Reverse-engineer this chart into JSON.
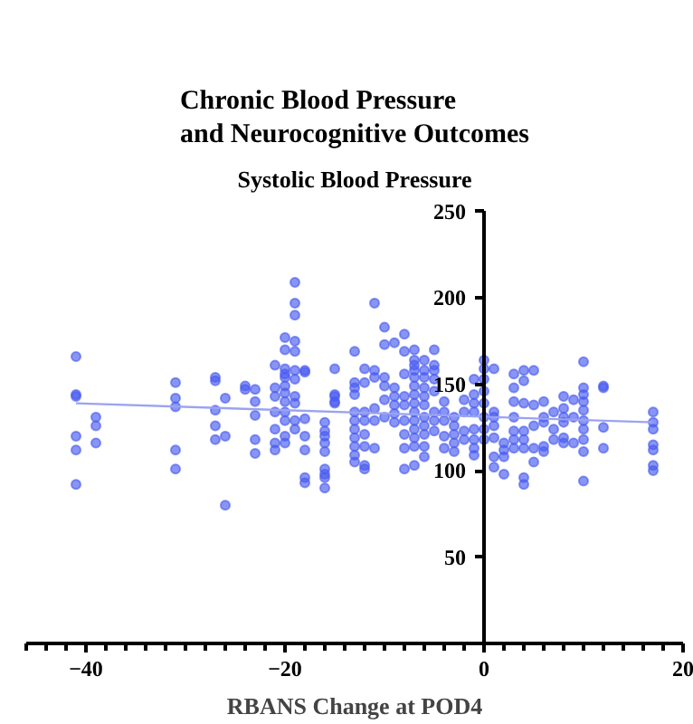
{
  "chart_data": {
    "type": "scatter",
    "title": "Chronic Blood Pressure\nand Neurocognitive Outcomes",
    "xlabel": "RBANS Change at POD4",
    "ylabel": "Systolic Blood Pressure",
    "xlim": [
      -46,
      20
    ],
    "ylim": [
      0,
      250
    ],
    "xticks": [
      -40,
      -20,
      0,
      20
    ],
    "yticks": [
      50,
      100,
      150,
      200,
      250
    ],
    "grid": false,
    "marker": "circle",
    "series": [
      {
        "color": "#4a5cf0",
        "x": [
          -41,
          -41,
          -41,
          -41,
          -41,
          -41,
          -39,
          -39,
          -39,
          -31,
          -31,
          -31,
          -31,
          -31,
          -27,
          -27,
          -27,
          -27,
          -27,
          -26,
          -26,
          -26,
          -24,
          -24,
          -23,
          -23,
          -23,
          -23,
          -23,
          -21,
          -21,
          -21,
          -21,
          -21,
          -21,
          -21,
          -20,
          -20,
          -20,
          -20,
          -20,
          -20,
          -20,
          -20,
          -20,
          -20,
          -20,
          -20,
          -19,
          -19,
          -19,
          -19,
          -19,
          -19,
          -19,
          -19,
          -19,
          -19,
          -19,
          -18,
          -18,
          -18,
          -18,
          -18,
          -18,
          -18,
          -16,
          -16,
          -16,
          -16,
          -16,
          -16,
          -16,
          -16,
          -16,
          -15,
          -15,
          -15,
          -15,
          -15,
          -13,
          -13,
          -13,
          -13,
          -13,
          -13,
          -13,
          -13,
          -13,
          -13,
          -13,
          -12,
          -12,
          -12,
          -12,
          -12,
          -12,
          -12,
          -12,
          -11,
          -11,
          -11,
          -11,
          -11,
          -11,
          -10,
          -10,
          -10,
          -10,
          -10,
          -10,
          -9,
          -9,
          -9,
          -9,
          -9,
          -9,
          -8,
          -8,
          -8,
          -8,
          -8,
          -8,
          -8,
          -8,
          -8,
          -7,
          -7,
          -7,
          -7,
          -7,
          -7,
          -7,
          -7,
          -7,
          -7,
          -7,
          -7,
          -7,
          -7,
          -6,
          -6,
          -6,
          -6,
          -6,
          -6,
          -6,
          -6,
          -6,
          -6,
          -6,
          -5,
          -5,
          -5,
          -5,
          -5,
          -5,
          -5,
          -5,
          -4,
          -4,
          -4,
          -4,
          -4,
          -3,
          -3,
          -3,
          -3,
          -3,
          -2,
          -2,
          -2,
          -2,
          -1,
          -1,
          -1,
          -1,
          -1,
          -1,
          -1,
          -1,
          0,
          0,
          0,
          0,
          0,
          0,
          0,
          0,
          1,
          1,
          1,
          1,
          1,
          1,
          1,
          2,
          2,
          2,
          2,
          3,
          3,
          3,
          3,
          3,
          3,
          3,
          4,
          4,
          4,
          4,
          4,
          4,
          4,
          4,
          5,
          5,
          5,
          5,
          5,
          6,
          6,
          6,
          6,
          6,
          7,
          7,
          7,
          8,
          8,
          8,
          8,
          8,
          8,
          9,
          9,
          9,
          10,
          10,
          10,
          10,
          10,
          10,
          10,
          10,
          10,
          10,
          12,
          12,
          12,
          12,
          17,
          17,
          17,
          17,
          17,
          17,
          17
        ],
        "values": [
          166,
          144,
          143,
          120,
          112,
          92,
          131,
          126,
          116,
          151,
          142,
          137,
          112,
          101,
          154,
          152,
          135,
          126,
          118,
          142,
          120,
          80,
          149,
          147,
          147,
          140,
          132,
          118,
          110,
          161,
          148,
          143,
          134,
          124,
          116,
          112,
          177,
          170,
          159,
          156,
          154,
          149,
          145,
          140,
          134,
          129,
          120,
          116,
          209,
          197,
          190,
          175,
          169,
          158,
          153,
          143,
          139,
          129,
          124,
          158,
          157,
          130,
          120,
          112,
          96,
          93,
          128,
          123,
          120,
          116,
          111,
          101,
          98,
          96,
          90,
          159,
          144,
          139,
          143,
          140,
          169,
          151,
          148,
          144,
          134,
          129,
          124,
          119,
          114,
          109,
          105,
          159,
          151,
          134,
          129,
          121,
          114,
          103,
          101,
          197,
          158,
          154,
          136,
          129,
          113,
          183,
          173,
          154,
          149,
          141,
          131,
          174,
          148,
          143,
          138,
          133,
          128,
          179,
          169,
          156,
          143,
          138,
          129,
          121,
          113,
          101,
          170,
          164,
          161,
          158,
          154,
          149,
          144,
          139,
          134,
          129,
          124,
          119,
          114,
          103,
          164,
          158,
          154,
          148,
          143,
          138,
          131,
          126,
          121,
          114,
          108,
          170,
          161,
          158,
          153,
          146,
          134,
          129,
          123,
          140,
          134,
          129,
          120,
          113,
          131,
          126,
          121,
          116,
          111,
          141,
          134,
          123,
          118,
          153,
          144,
          139,
          134,
          124,
          118,
          113,
          109,
          164,
          159,
          153,
          146,
          139,
          131,
          124,
          118,
          159,
          134,
          131,
          126,
          119,
          108,
          102,
          116,
          112,
          108,
          98,
          156,
          148,
          140,
          131,
          123,
          118,
          113,
          158,
          152,
          139,
          123,
          118,
          113,
          96,
          92,
          158,
          138,
          126,
          113,
          105,
          140,
          131,
          128,
          114,
          111,
          134,
          124,
          118,
          143,
          136,
          131,
          128,
          119,
          116,
          141,
          131,
          116,
          163,
          148,
          144,
          140,
          135,
          129,
          124,
          118,
          111,
          94,
          149,
          148,
          125,
          113,
          134,
          128,
          124,
          115,
          112,
          103,
          100
        ]
      },
      {
        "type": "line",
        "color": "#9aa3f2",
        "marker": "none",
        "x": [
          -41,
          17
        ],
        "values": [
          139,
          128
        ]
      }
    ]
  }
}
